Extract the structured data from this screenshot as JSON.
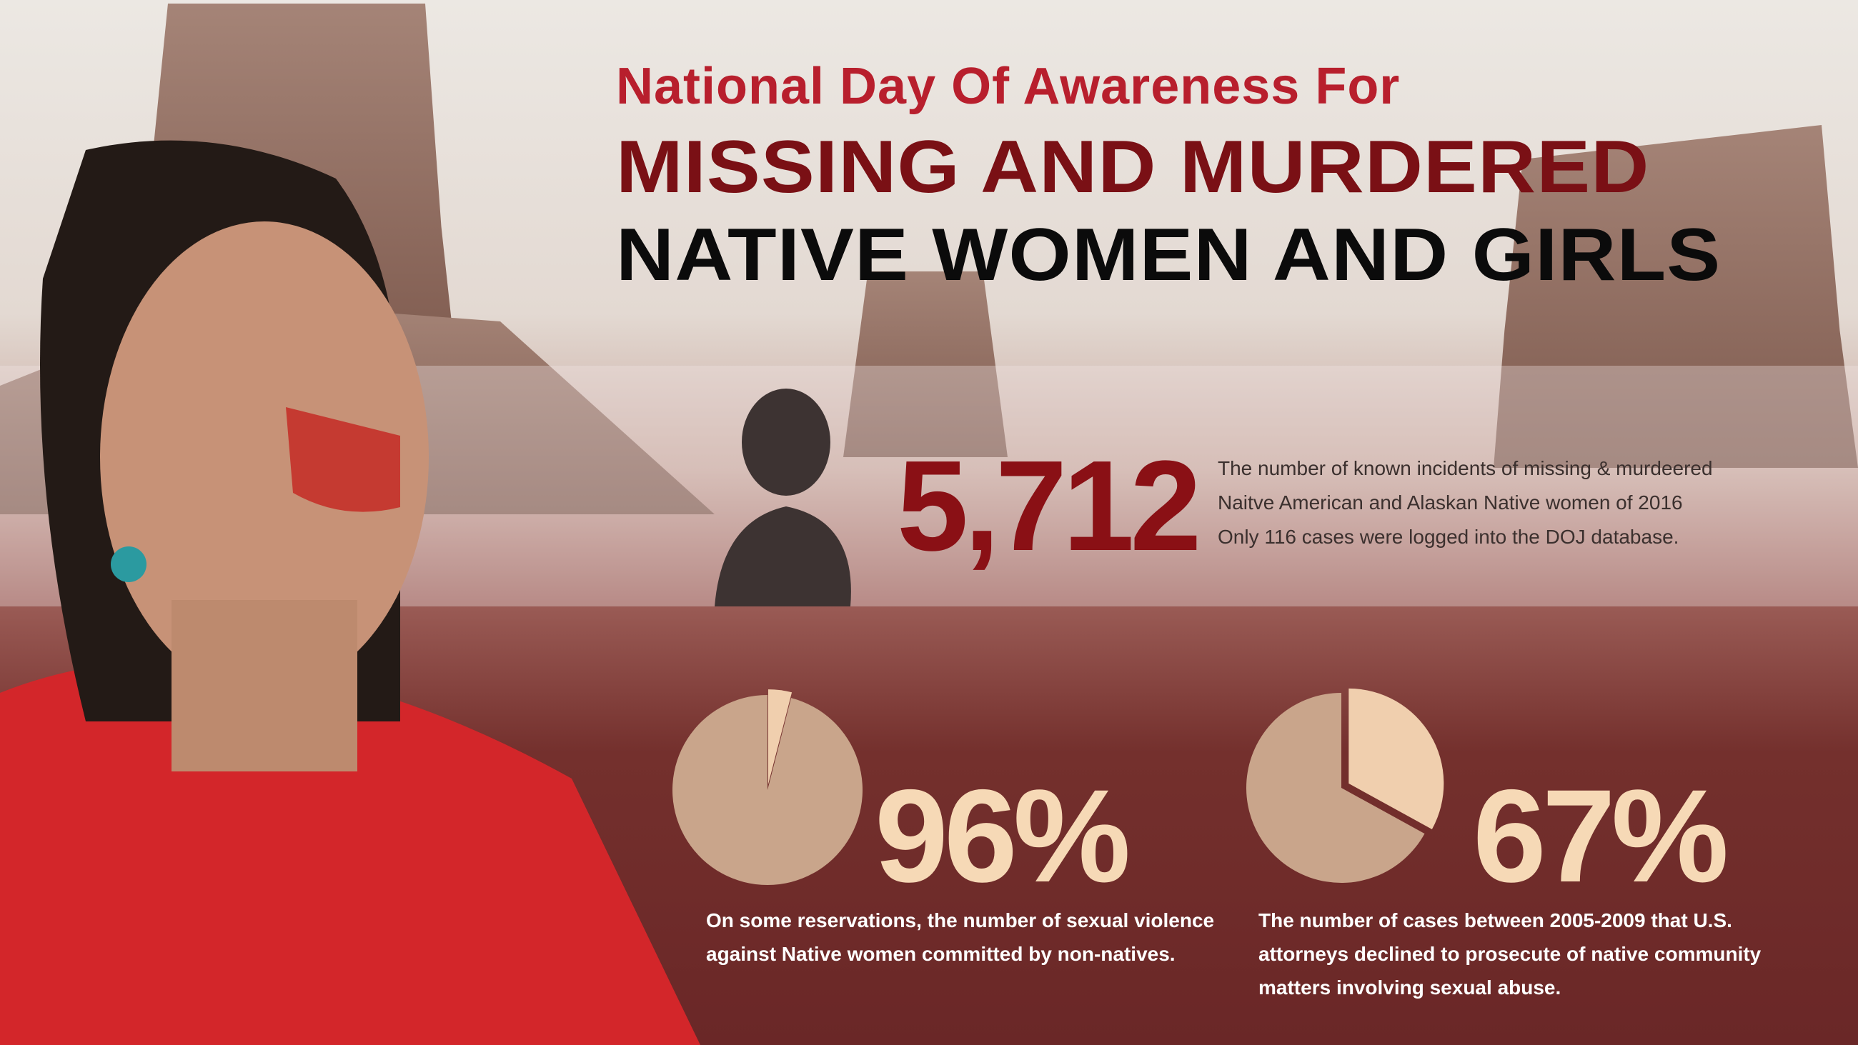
{
  "title": {
    "line1": "National Day Of Awareness For",
    "line2": "MISSING AND MURDERED",
    "line3": "NATIVE WOMEN AND GIRLS"
  },
  "stats": [
    {
      "value": "5,712",
      "lines": [
        "The number of known incidents of missing & murdeered",
        "Naitve American and Alaskan Native women of 2016",
        "Only 116 cases were logged into the DOJ database."
      ]
    },
    {
      "value": "96%",
      "percent": 96,
      "lines": [
        "On some reservations, the number of sexual violence",
        "against Native women committed by non-natives."
      ]
    },
    {
      "value": "67%",
      "percent": 67,
      "lines": [
        "The number of cases between 2005-2009 that U.S.",
        "attorneys declined to prosecute of native community",
        " matters involving sexual abuse."
      ]
    }
  ],
  "colors": {
    "title_red": "#b81f2d",
    "dark_red": "#7a1015",
    "pie_main": "#c9a58b",
    "pie_slice": "#f0cfae",
    "stat_text": "#f6d9b6"
  }
}
